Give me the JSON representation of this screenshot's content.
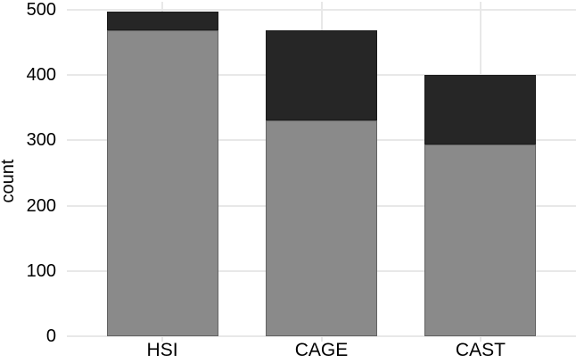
{
  "figure": {
    "background_color": "#ffffff",
    "text_color": "#000000",
    "gridline_color": "#e8e8e8"
  },
  "chart_data": {
    "type": "bar",
    "stacked": true,
    "title": "",
    "xlabel": "",
    "ylabel": "count",
    "categories": [
      "HSI",
      "CAGE",
      "CAST"
    ],
    "series": [
      {
        "name": "gray-segment",
        "color": "#8a8a8a",
        "values": [
          468,
          330,
          294
        ]
      },
      {
        "name": "dark-segment",
        "color": "#262626",
        "values": [
          29,
          139,
          106
        ]
      }
    ],
    "totals": [
      497,
      469,
      400
    ],
    "yticks": [
      0,
      100,
      200,
      300,
      400,
      500
    ],
    "ytick_labels": [
      "0",
      "100",
      "200",
      "300",
      "400",
      "500"
    ],
    "ylim": [
      0,
      500
    ],
    "grid": "horizontal lines at each 100 and vertical lines at bar centers, light gray",
    "legend": "none"
  }
}
